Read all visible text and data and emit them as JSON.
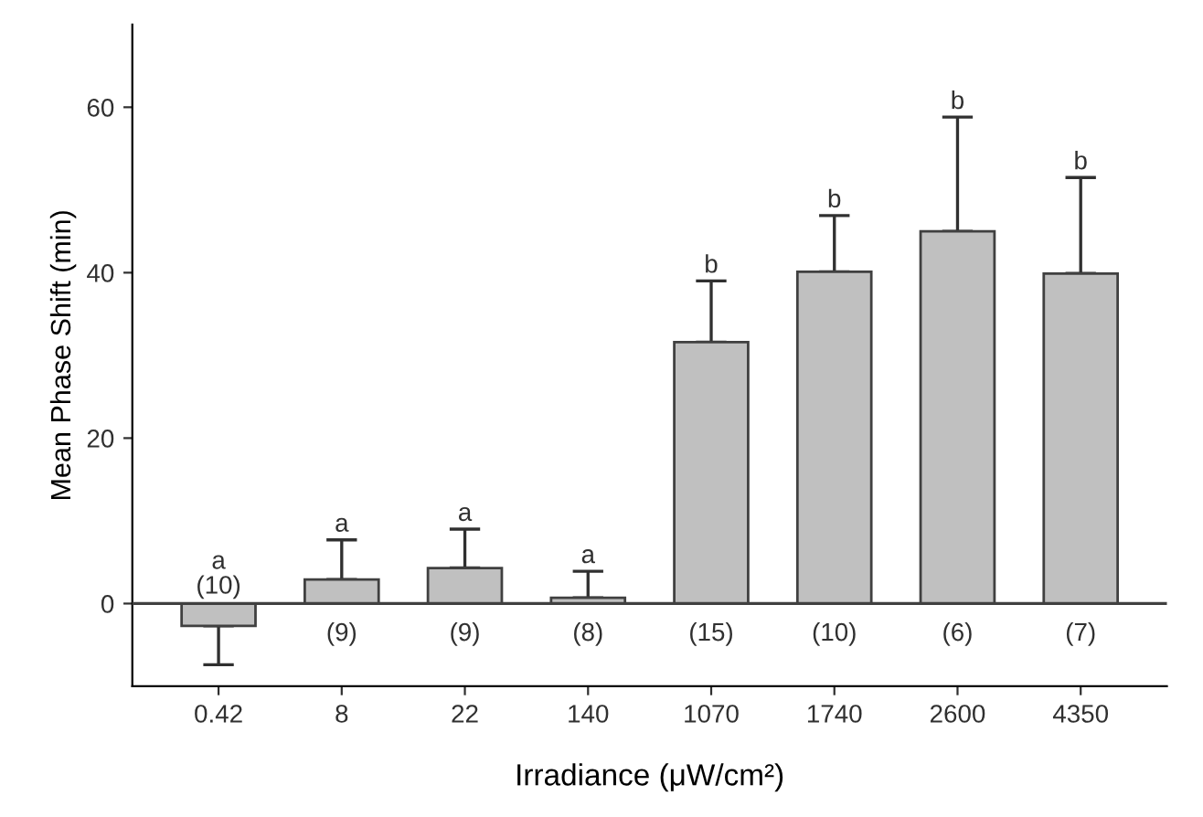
{
  "chart_data": {
    "type": "bar",
    "xlabel": "Irradiance (μW/cm²)",
    "ylabel": "Mean Phase Shift (min)",
    "categories": [
      "0.42",
      "8",
      "22",
      "140",
      "1070",
      "1740",
      "2600",
      "4350"
    ],
    "values": [
      -2.7,
      2.9,
      4.3,
      0.7,
      31.6,
      40.1,
      45.0,
      39.9
    ],
    "errors": [
      [
        -7.4,
        -2.7
      ],
      [
        2.9,
        7.7
      ],
      [
        4.3,
        9.0
      ],
      [
        0.7,
        3.9
      ],
      [
        31.6,
        39.0
      ],
      [
        40.1,
        46.9
      ],
      [
        45.0,
        58.8
      ],
      [
        39.9,
        51.5
      ]
    ],
    "color": "#c0c0c0",
    "ylim": [
      -10,
      70
    ],
    "yticks": [
      0,
      20,
      40,
      60
    ],
    "ref_lines": [
      {
        "axis": "y",
        "value": 0,
        "color": "#404040"
      }
    ],
    "grid": false,
    "legend": false,
    "annotations": [
      "a",
      "a",
      "a",
      "a",
      "b",
      "b",
      "b",
      "b",
      "(10)",
      "(9)",
      "(9)",
      "(8)",
      "(15)",
      "(10)",
      "(6)",
      "(7)"
    ]
  }
}
